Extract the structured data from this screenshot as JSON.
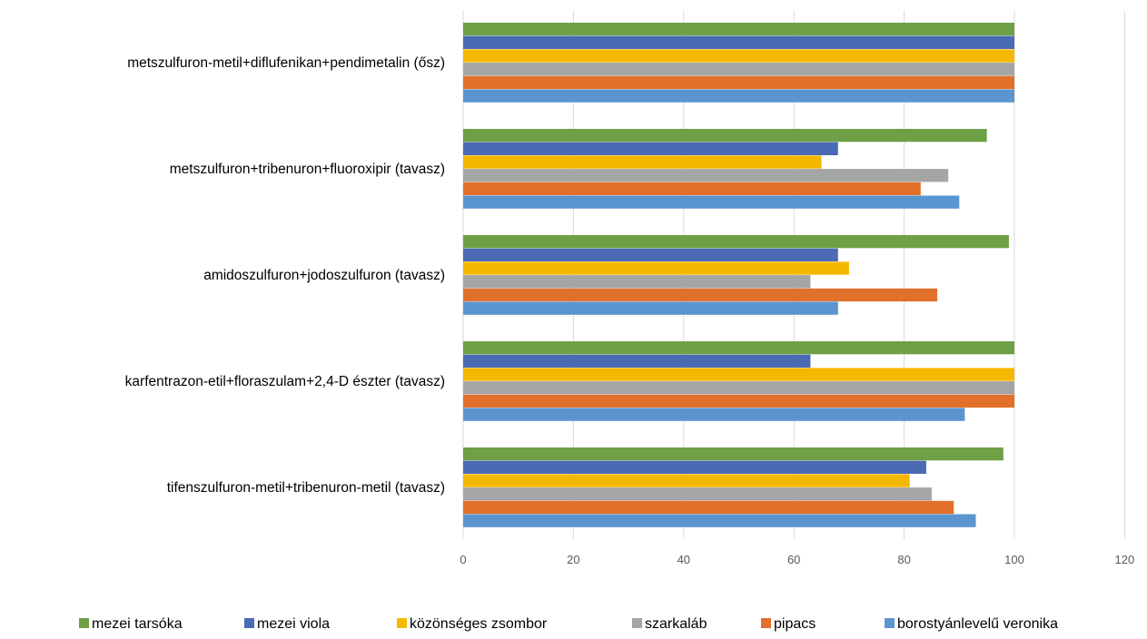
{
  "chart_data": {
    "type": "bar",
    "orientation": "horizontal",
    "categories": [
      "metszulfuron-metil+diflufenikan+pendimetalin  (ősz)",
      "metszulfuron+tribenuron+fluoroxipir (tavasz)",
      "amidoszulfuron+jodoszulfuron (tavasz)",
      "karfentrazon-etil+floraszulam+2,4-D észter (tavasz)",
      "tifenszulfuron-metil+tribenuron-metil (tavasz)"
    ],
    "series": [
      {
        "name": "mezei tarsóka",
        "color": "#6ea046",
        "values": [
          100,
          95,
          99,
          100,
          98
        ]
      },
      {
        "name": "mezei viola",
        "color": "#4a6ab4",
        "values": [
          100,
          68,
          68,
          63,
          84
        ]
      },
      {
        "name": "közönséges zsombor",
        "color": "#f5b800",
        "values": [
          100,
          65,
          70,
          100,
          81
        ]
      },
      {
        "name": "szarkaláb",
        "color": "#a5a5a5",
        "values": [
          100,
          88,
          63,
          100,
          85
        ]
      },
      {
        "name": "pipacs",
        "color": "#e0702a",
        "values": [
          100,
          83,
          86,
          100,
          89
        ]
      },
      {
        "name": "borostyánlevelű veronika",
        "color": "#5b95d0",
        "values": [
          100,
          90,
          68,
          91,
          93
        ]
      }
    ],
    "xlim": [
      0,
      120
    ],
    "x_ticks": [
      "0",
      "20",
      "40",
      "60",
      "80",
      "100",
      "120"
    ],
    "grid": true,
    "legend_position": "bottom"
  }
}
